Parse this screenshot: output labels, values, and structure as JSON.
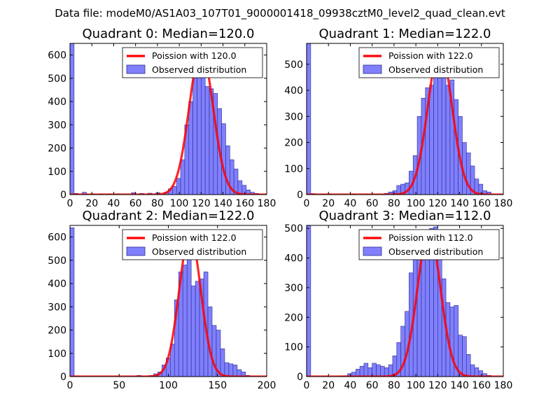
{
  "suptitle": "Data file: modeM0/AS1A03_107T01_9000001418_09938cztM0_level2_quad_clean.evt",
  "colors": {
    "bar_fill": "#8080ff",
    "bar_edge": "#2a2a8a",
    "curve": "#ff0000",
    "curve_alpha": "#ff8080",
    "axes": "#000000"
  },
  "chart_data": [
    {
      "type": "bar",
      "title": "Quadrant 0: Median=120.0",
      "median": 120.0,
      "legend": {
        "location": "top-right",
        "curve_label": "Poission with 120.0",
        "bar_label": "Observed distribution"
      },
      "xlim": [
        0,
        180
      ],
      "ylim": [
        0,
        650
      ],
      "xticks": [
        0,
        20,
        40,
        60,
        80,
        100,
        120,
        140,
        160,
        180
      ],
      "yticks": [
        0,
        100,
        200,
        300,
        400,
        500,
        600
      ],
      "bin_width": 3.75,
      "bins": [
        [
          0,
          650
        ],
        [
          3.75,
          5
        ],
        [
          11.25,
          10
        ],
        [
          18.75,
          3
        ],
        [
          26.25,
          2
        ],
        [
          33.75,
          2
        ],
        [
          41.25,
          2
        ],
        [
          56.25,
          8
        ],
        [
          63.75,
          5
        ],
        [
          71.25,
          6
        ],
        [
          78.75,
          8
        ],
        [
          86.25,
          10
        ],
        [
          90,
          25
        ],
        [
          93.75,
          35
        ],
        [
          97.5,
          70
        ],
        [
          101.25,
          150
        ],
        [
          105,
          300
        ],
        [
          108.75,
          400
        ],
        [
          112.5,
          560
        ],
        [
          116.25,
          625
        ],
        [
          120,
          580
        ],
        [
          123.75,
          465
        ],
        [
          127.5,
          455
        ],
        [
          131.25,
          435
        ],
        [
          135,
          370
        ],
        [
          138.75,
          305
        ],
        [
          142.5,
          210
        ],
        [
          146.25,
          150
        ],
        [
          150,
          110
        ],
        [
          153.75,
          60
        ],
        [
          157.5,
          40
        ],
        [
          161.25,
          20
        ],
        [
          165,
          10
        ],
        [
          168.75,
          5
        ]
      ],
      "curve_peak": 620
    },
    {
      "type": "bar",
      "title": "Quadrant 1: Median=122.0",
      "median": 122.0,
      "legend": {
        "location": "top-right",
        "curve_label": "Poission with 122.0",
        "bar_label": "Observed distribution"
      },
      "xlim": [
        0,
        180
      ],
      "ylim": [
        0,
        580
      ],
      "xticks": [
        0,
        20,
        40,
        60,
        80,
        100,
        120,
        140,
        160,
        180
      ],
      "yticks": [
        0,
        100,
        200,
        300,
        400,
        500
      ],
      "bin_width": 3.75,
      "bins": [
        [
          0,
          580
        ],
        [
          3.75,
          4
        ],
        [
          18.75,
          3
        ],
        [
          41.25,
          2
        ],
        [
          71.25,
          5
        ],
        [
          75,
          10
        ],
        [
          78.75,
          15
        ],
        [
          82.5,
          35
        ],
        [
          86.25,
          40
        ],
        [
          90,
          45
        ],
        [
          93.75,
          90
        ],
        [
          97.5,
          150
        ],
        [
          101.25,
          300
        ],
        [
          105,
          370
        ],
        [
          108.75,
          410
        ],
        [
          112.5,
          420
        ],
        [
          116.25,
          460
        ],
        [
          120,
          545
        ],
        [
          123.75,
          500
        ],
        [
          127.5,
          420
        ],
        [
          131.25,
          440
        ],
        [
          135,
          365
        ],
        [
          138.75,
          300
        ],
        [
          142.5,
          200
        ],
        [
          146.25,
          160
        ],
        [
          150,
          110
        ],
        [
          153.75,
          60
        ],
        [
          157.5,
          40
        ],
        [
          161.25,
          15
        ],
        [
          165,
          10
        ]
      ],
      "curve_peak": 560
    },
    {
      "type": "bar",
      "title": "Quadrant 2: Median=122.0",
      "median": 122.0,
      "legend": {
        "location": "top-right",
        "curve_label": "Poission with 122.0",
        "bar_label": "Observed distribution"
      },
      "xlim": [
        0,
        200
      ],
      "ylim": [
        0,
        650
      ],
      "xticks": [
        0,
        50,
        100,
        150,
        200
      ],
      "yticks": [
        0,
        100,
        200,
        300,
        400,
        500,
        600
      ],
      "bin_width": 4.25,
      "bins": [
        [
          0,
          640
        ],
        [
          4.25,
          3
        ],
        [
          68,
          5
        ],
        [
          80.75,
          5
        ],
        [
          85,
          12
        ],
        [
          89.25,
          20
        ],
        [
          93.5,
          50
        ],
        [
          97.75,
          80
        ],
        [
          102,
          140
        ],
        [
          106.25,
          330
        ],
        [
          110.5,
          450
        ],
        [
          114.75,
          480
        ],
        [
          119,
          585
        ],
        [
          123.25,
          390
        ],
        [
          127.5,
          410
        ],
        [
          131.75,
          420
        ],
        [
          136,
          450
        ],
        [
          140.25,
          300
        ],
        [
          144.5,
          220
        ],
        [
          148.75,
          200
        ],
        [
          153,
          120
        ],
        [
          157.25,
          60
        ],
        [
          161.5,
          55
        ],
        [
          165.75,
          50
        ],
        [
          170,
          30
        ],
        [
          174.25,
          20
        ],
        [
          178.5,
          5
        ]
      ],
      "curve_peak": 610
    },
    {
      "type": "bar",
      "title": "Quadrant 3: Median=112.0",
      "median": 112.0,
      "legend": {
        "location": "top-right",
        "curve_label": "Poission with 112.0",
        "bar_label": "Observed distribution"
      },
      "xlim": [
        0,
        180
      ],
      "ylim": [
        0,
        510
      ],
      "xticks": [
        0,
        20,
        40,
        60,
        80,
        100,
        120,
        140,
        160,
        180
      ],
      "yticks": [
        0,
        100,
        200,
        300,
        400,
        500
      ],
      "bin_width": 3.75,
      "bins": [
        [
          0,
          510
        ],
        [
          30,
          2
        ],
        [
          33.75,
          3
        ],
        [
          37.5,
          10
        ],
        [
          41.25,
          15
        ],
        [
          45,
          25
        ],
        [
          48.75,
          35
        ],
        [
          52.5,
          45
        ],
        [
          56.25,
          30
        ],
        [
          60,
          45
        ],
        [
          63.75,
          40
        ],
        [
          67.5,
          35
        ],
        [
          71.25,
          30
        ],
        [
          75,
          40
        ],
        [
          78.75,
          70
        ],
        [
          82.5,
          115
        ],
        [
          86.25,
          170
        ],
        [
          90,
          220
        ],
        [
          93.75,
          350
        ],
        [
          97.5,
          420
        ],
        [
          101.25,
          480
        ],
        [
          105,
          420
        ],
        [
          108.75,
          490
        ],
        [
          112.5,
          500
        ],
        [
          116.25,
          505
        ],
        [
          120,
          490
        ],
        [
          123.75,
          330
        ],
        [
          127.5,
          250
        ],
        [
          131.25,
          235
        ],
        [
          135,
          240
        ],
        [
          138.75,
          140
        ],
        [
          142.5,
          135
        ],
        [
          146.25,
          75
        ],
        [
          150,
          40
        ],
        [
          153.75,
          30
        ],
        [
          157.5,
          20
        ],
        [
          161.25,
          10
        ],
        [
          165,
          4
        ]
      ],
      "curve_peak": 490
    }
  ]
}
